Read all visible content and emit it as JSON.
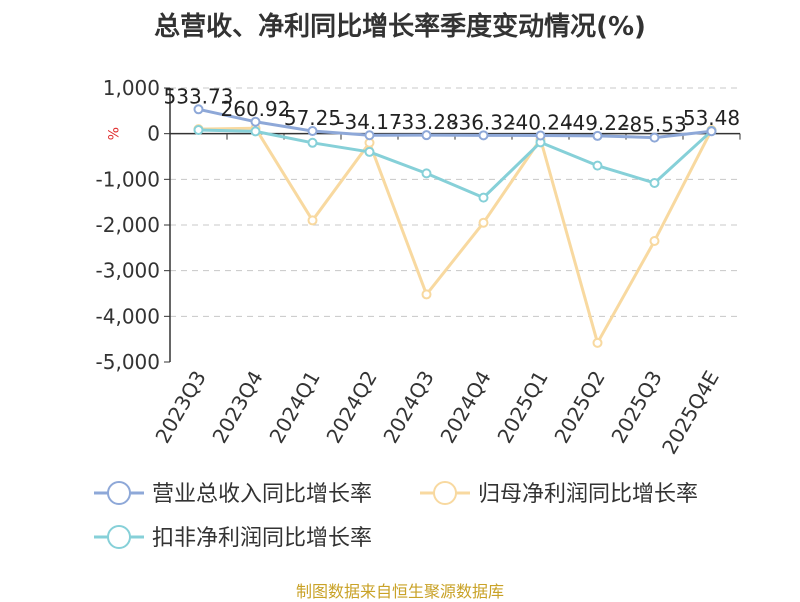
{
  "chart_data": {
    "type": "line",
    "title": "总营收、净利同比增长率季度变动情况(%)",
    "ylabel": "%",
    "categories": [
      "2023Q3",
      "2023Q4",
      "2024Q1",
      "2024Q2",
      "2024Q3",
      "2024Q4",
      "2025Q1",
      "2025Q2",
      "2025Q3",
      "2025Q4E"
    ],
    "ylim": [
      -5000,
      1000
    ],
    "yticks": [
      1000,
      0,
      -1000,
      -2000,
      -3000,
      -4000,
      -5000
    ],
    "ytick_labels": [
      "1,000",
      "0",
      "-1,000",
      "-2,000",
      "-3,000",
      "-4,000",
      "-5,000"
    ],
    "grid": true,
    "legend_position": "bottom",
    "series": [
      {
        "name": "营业总收入同比增长率",
        "color": "#8ea8d8",
        "values": [
          533.73,
          260.92,
          57.25,
          -34.17,
          -33.28,
          -36.32,
          -40.24,
          -49.22,
          -85.53,
          53.48
        ],
        "labels": [
          "533.73",
          "260.92",
          "57.25",
          "-34.17",
          "-33.28",
          "-36.32",
          "-40.24",
          "-49.22",
          "-85.53",
          "53.48"
        ]
      },
      {
        "name": "归母净利润同比增长率",
        "color": "#f8d9a0",
        "values": [
          100,
          120,
          -1900,
          -200,
          -3520,
          -1950,
          -120,
          -4580,
          -2350,
          80
        ]
      },
      {
        "name": "扣非净利润同比增长率",
        "color": "#86d0d8",
        "values": [
          80,
          50,
          -200,
          -400,
          -870,
          -1400,
          -190,
          -700,
          -1080,
          60
        ]
      }
    ]
  },
  "footer": {
    "source": "制图数据来自恒生聚源数据库"
  }
}
